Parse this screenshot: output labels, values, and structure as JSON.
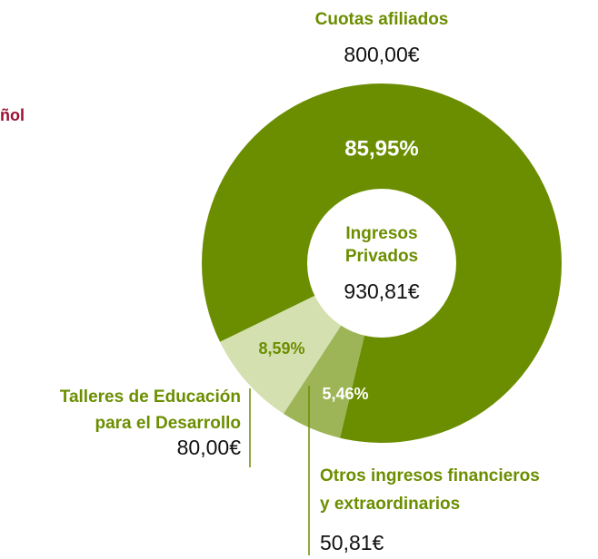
{
  "chart_data": {
    "type": "donut",
    "header_fragment": "ñol",
    "center_title": [
      "Ingresos",
      "Privados"
    ],
    "center_total": 930.81,
    "center_total_label": "930,81€",
    "categories": [
      [
        "Cuotas afiliados"
      ],
      [
        "Otros ingresos financieros",
        "y extraordinarios"
      ],
      [
        "Talleres de Educación",
        "para el Desarrollo"
      ]
    ],
    "values": [
      85.95,
      5.46,
      8.59
    ],
    "value_labels": [
      "85,95%",
      "5,46%",
      "8,59%"
    ],
    "amounts": [
      800.0,
      50.81,
      80.0
    ],
    "amount_labels": [
      "800,00€",
      "50,81€",
      "80,00€"
    ],
    "colors": [
      "#6b8e00",
      "#9db556",
      "#d5e0b0"
    ],
    "value_label_colors": [
      "#ffffff",
      "#ffffff",
      "#6b8e00"
    ]
  }
}
